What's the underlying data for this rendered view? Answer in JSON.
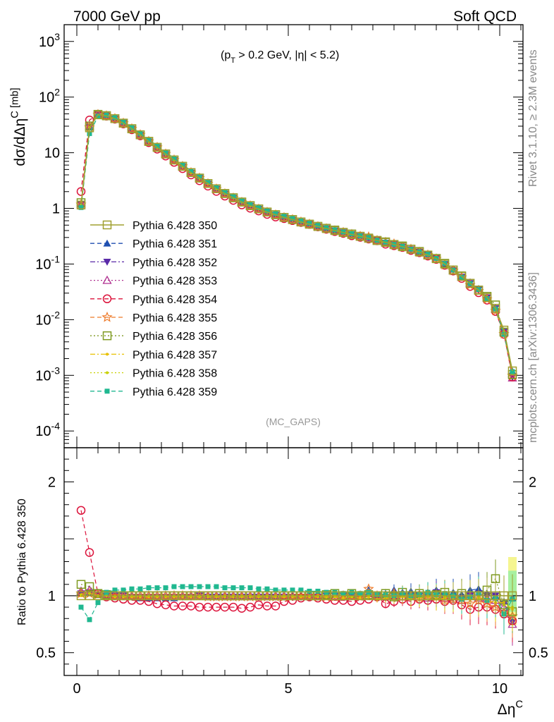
{
  "header": {
    "left": "7000 GeV pp",
    "right": "Soft QCD",
    "cuts": "(p_T > 0.2 GeV, |η| < 5.2)",
    "analysis": "(MC_GAPS)",
    "side_top": "Rivet 3.1.10, ≥ 2.3M events",
    "side_bottom": "mcplots.cern.ch [arXiv:1306.3436]"
  },
  "colors": {
    "Pythia 6.428 350": "#a0a030",
    "Pythia 6.428 351": "#1f4fb0",
    "Pythia 6.428 352": "#5a2aa8",
    "Pythia 6.428 353": "#b03090",
    "Pythia 6.428 354": "#dc143c",
    "Pythia 6.428 355": "#ee7a2a",
    "Pythia 6.428 356": "#7f9a20",
    "Pythia 6.428 357": "#e8c000",
    "Pythia 6.428 358": "#c8d000",
    "Pythia 6.428 359": "#20b890"
  },
  "chart_data": [
    {
      "type": "line",
      "ylabel": "dσ/dΔη^C [mb]",
      "yscale": "log",
      "ylim": [
        5e-05,
        2000
      ],
      "xlim": [
        -0.3,
        10.55
      ],
      "yticks": [
        {
          "v": 1000,
          "label": "10^3"
        },
        {
          "v": 100,
          "label": "10^2"
        },
        {
          "v": 10,
          "label": "10"
        },
        {
          "v": 1,
          "label": "1"
        },
        {
          "v": 0.1,
          "label": "10^-1"
        },
        {
          "v": 0.01,
          "label": "10^-2"
        },
        {
          "v": 0.001,
          "label": "10^-3"
        },
        {
          "v": 0.0001,
          "label": "10^-4"
        }
      ],
      "legend_position": "center-left",
      "x": [
        0.1,
        0.3,
        0.5,
        0.7,
        0.9,
        1.1,
        1.3,
        1.5,
        1.7,
        1.9,
        2.1,
        2.3,
        2.5,
        2.7,
        2.9,
        3.1,
        3.3,
        3.5,
        3.7,
        3.9,
        4.1,
        4.3,
        4.5,
        4.7,
        4.9,
        5.1,
        5.3,
        5.5,
        5.7,
        5.9,
        6.1,
        6.3,
        6.5,
        6.7,
        6.9,
        7.1,
        7.3,
        7.5,
        7.7,
        7.9,
        8.1,
        8.3,
        8.5,
        8.7,
        8.9,
        9.1,
        9.3,
        9.5,
        9.7,
        9.9,
        10.1,
        10.3
      ],
      "reference_values": [
        1.15,
        28,
        48,
        46,
        41,
        34,
        27,
        21,
        16,
        12.5,
        9.5,
        7.4,
        5.7,
        4.4,
        3.5,
        2.8,
        2.25,
        1.85,
        1.55,
        1.3,
        1.12,
        0.98,
        0.86,
        0.77,
        0.69,
        0.63,
        0.57,
        0.52,
        0.475,
        0.435,
        0.4,
        0.37,
        0.34,
        0.315,
        0.29,
        0.265,
        0.245,
        0.225,
        0.205,
        0.185,
        0.165,
        0.145,
        0.125,
        0.1,
        0.078,
        0.06,
        0.045,
        0.034,
        0.025,
        0.016,
        0.0065,
        0.0012
      ],
      "series": [
        {
          "name": "Pythia 6.428 350",
          "line": "solid",
          "marker": "square-open",
          "ratio": [
            1,
            1,
            1,
            1,
            1,
            1,
            1,
            1,
            1,
            1,
            1,
            1,
            1,
            1,
            1,
            1,
            1,
            1,
            1,
            1,
            1,
            1,
            1,
            1,
            1,
            1,
            1,
            1,
            1,
            1,
            1,
            1,
            1,
            1,
            1,
            1,
            1,
            1,
            1,
            1,
            1,
            1,
            1,
            1,
            1,
            1,
            1,
            1,
            1,
            1,
            1,
            1
          ]
        },
        {
          "name": "Pythia 6.428 351",
          "line": "dashed",
          "marker": "triangle-up",
          "ratio": [
            1.03,
            1.03,
            1.02,
            1.0,
            0.99,
            0.99,
            0.99,
            0.98,
            0.98,
            0.98,
            0.98,
            0.98,
            0.99,
            0.99,
            0.99,
            0.99,
            0.99,
            0.99,
            0.99,
            0.99,
            0.99,
            1.0,
            1.0,
            1.0,
            1.0,
            1.0,
            1.0,
            1.0,
            1.0,
            1.0,
            1.01,
            1.0,
            1.02,
            1.0,
            1.05,
            1.0,
            1.02,
            1.05,
            1.03,
            1.04,
            1.02,
            1.03,
            1.05,
            1.0,
            1.03,
            1.01,
            1.05,
            1.06,
            1.02,
            1.0,
            0.95,
            0.98
          ]
        },
        {
          "name": "Pythia 6.428 352",
          "line": "dashdot",
          "marker": "triangle-down",
          "ratio": [
            1.02,
            1.03,
            1.01,
            1.0,
            1.0,
            1.0,
            0.99,
            0.99,
            0.99,
            0.99,
            0.99,
            0.99,
            0.99,
            0.99,
            1.0,
            0.99,
            0.99,
            0.99,
            0.99,
            0.99,
            0.99,
            0.99,
            0.99,
            0.99,
            0.99,
            0.99,
            0.99,
            0.99,
            0.99,
            1.0,
            1.0,
            1.0,
            1.0,
            1.0,
            1.02,
            1.0,
            0.98,
            1.0,
            1.0,
            0.99,
            1.0,
            1.01,
            1.03,
            1.0,
            0.98,
            0.98,
            1.0,
            1.02,
            1.0,
            1.0,
            0.93,
            0.77
          ]
        },
        {
          "name": "Pythia 6.428 353",
          "line": "dotted",
          "marker": "triangle-open",
          "ratio": [
            1.04,
            1.05,
            1.02,
            1.01,
            1.0,
            1.0,
            1.0,
            1.0,
            1.0,
            1.0,
            1.0,
            1.0,
            1.0,
            1.0,
            1.0,
            1.0,
            1.0,
            1.0,
            1.0,
            1.0,
            1.0,
            1.0,
            1.0,
            1.0,
            1.0,
            1.0,
            1.0,
            1.0,
            1.0,
            1.0,
            1.0,
            0.99,
            1.0,
            1.0,
            1.02,
            1.0,
            1.0,
            1.0,
            0.99,
            1.0,
            1.01,
            0.98,
            1.0,
            0.98,
            0.97,
            0.96,
            1.0,
            0.98,
            0.98,
            0.96,
            0.9,
            0.75
          ]
        },
        {
          "name": "Pythia 6.428 354",
          "line": "dashed",
          "marker": "circle-open",
          "ratio": [
            1.75,
            1.38,
            1.02,
            0.99,
            0.98,
            0.97,
            0.96,
            0.96,
            0.95,
            0.93,
            0.92,
            0.91,
            0.91,
            0.91,
            0.9,
            0.9,
            0.9,
            0.9,
            0.9,
            0.89,
            0.9,
            0.92,
            0.91,
            0.91,
            0.95,
            0.96,
            0.98,
            0.99,
            0.98,
            0.97,
            0.96,
            0.96,
            0.95,
            0.96,
            0.97,
            0.99,
            0.93,
            0.95,
            0.97,
            0.95,
            0.97,
            0.96,
            0.97,
            0.95,
            0.96,
            0.92,
            0.88,
            0.9,
            0.9,
            0.88,
            0.84,
            0.78
          ]
        },
        {
          "name": "Pythia 6.428 355",
          "line": "dashed",
          "marker": "star-open",
          "ratio": [
            1.02,
            1.02,
            1.01,
            1.0,
            1.0,
            1.0,
            1.0,
            1.0,
            1.0,
            1.0,
            1.0,
            1.0,
            1.0,
            1.0,
            1.0,
            0.99,
            0.99,
            0.99,
            0.99,
            0.99,
            0.99,
            0.99,
            0.99,
            0.99,
            0.99,
            1.0,
            1.0,
            1.0,
            0.99,
            0.99,
            0.99,
            1.0,
            1.0,
            1.0,
            1.06,
            1.0,
            1.0,
            1.02,
            0.99,
            1.0,
            0.98,
            1.0,
            0.99,
            0.96,
            0.97,
            0.96,
            0.93,
            0.96,
            0.93,
            0.9,
            0.85,
            0.82
          ]
        },
        {
          "name": "Pythia 6.428 356",
          "line": "dotted",
          "marker": "square-open",
          "ratio": [
            1.1,
            1.08,
            1.02,
            1.01,
            1.0,
            1.0,
            1.0,
            1.0,
            1.0,
            1.0,
            1.0,
            1.0,
            1.0,
            1.0,
            1.0,
            1.0,
            1.0,
            1.0,
            1.0,
            1.0,
            1.0,
            1.0,
            1.0,
            1.0,
            1.0,
            1.0,
            1.0,
            1.0,
            1.0,
            1.01,
            1.02,
            1.0,
            1.02,
            1.0,
            1.01,
            1.0,
            1.02,
            0.99,
            1.03,
            1.0,
            1.02,
            1.0,
            1.01,
            1.03,
            1.0,
            1.02,
            1.0,
            1.0,
            1.05,
            1.15,
            0.92,
            0.86
          ]
        },
        {
          "name": "Pythia 6.428 357",
          "line": "dashdot",
          "marker": "dot",
          "ratio": [
            1.0,
            1.02,
            1.0,
            1.0,
            0.99,
            0.99,
            0.99,
            0.99,
            0.99,
            0.99,
            0.99,
            0.99,
            0.99,
            0.99,
            0.99,
            0.99,
            0.99,
            0.99,
            0.99,
            0.99,
            0.99,
            0.99,
            0.99,
            0.99,
            0.99,
            0.99,
            0.99,
            0.99,
            0.99,
            0.99,
            0.99,
            0.98,
            0.99,
            0.98,
            0.99,
            0.97,
            0.98,
            0.98,
            0.99,
            0.97,
            0.98,
            0.99,
            0.97,
            0.98,
            1.0,
            0.97,
            0.97,
            0.99,
            0.96,
            0.94,
            0.94,
            0.88
          ]
        },
        {
          "name": "Pythia 6.428 358",
          "line": "dotted",
          "marker": "dot",
          "ratio": [
            1.01,
            1.02,
            1.0,
            1.0,
            1.0,
            1.0,
            1.0,
            1.0,
            1.0,
            1.0,
            1.0,
            1.0,
            1.0,
            1.0,
            1.0,
            1.0,
            1.0,
            1.0,
            1.0,
            1.0,
            1.0,
            1.0,
            1.0,
            1.0,
            1.0,
            1.0,
            1.0,
            1.0,
            1.0,
            1.0,
            1.0,
            1.0,
            0.99,
            1.0,
            1.0,
            1.0,
            0.99,
            0.99,
            1.0,
            0.98,
            0.99,
            1.0,
            0.99,
            0.99,
            0.98,
            0.97,
            0.99,
            0.98,
            0.98,
            0.96,
            0.92,
            0.9
          ]
        },
        {
          "name": "Pythia 6.428 359",
          "line": "dashed",
          "marker": "square",
          "ratio": [
            0.9,
            0.79,
            0.94,
            1.03,
            1.05,
            1.05,
            1.06,
            1.06,
            1.07,
            1.07,
            1.07,
            1.08,
            1.08,
            1.08,
            1.08,
            1.08,
            1.08,
            1.07,
            1.07,
            1.07,
            1.07,
            1.06,
            1.06,
            1.05,
            1.05,
            1.05,
            1.05,
            1.04,
            1.04,
            1.03,
            1.03,
            1.02,
            1.03,
            1.02,
            1.03,
            1.01,
            1.01,
            1.0,
            1.02,
            1.0,
            1.01,
            1.03,
            1.01,
            1.02,
            1.0,
            0.97,
            0.99,
            1.02,
            0.96,
            0.98,
            0.84,
            0.97
          ]
        }
      ]
    },
    {
      "type": "line",
      "ylabel": "Ratio to Pythia 6.428 350",
      "xlabel": "Δη^C",
      "ylim": [
        0.3,
        2.3
      ],
      "yticks": [
        {
          "v": 0.5,
          "label": "0.5"
        },
        {
          "v": 1,
          "label": "1"
        },
        {
          "v": 2,
          "label": "2"
        }
      ],
      "xticks": [
        {
          "v": 0,
          "label": "0"
        },
        {
          "v": 5,
          "label": "5"
        },
        {
          "v": 10,
          "label": "10"
        }
      ],
      "reference_band": {
        "x_from": 10.2,
        "x_to": 10.4,
        "low": 0.86,
        "high": 1.22
      }
    }
  ]
}
